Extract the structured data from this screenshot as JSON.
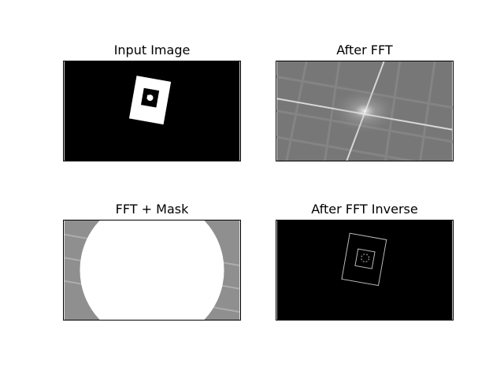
{
  "figure": {
    "panels": [
      {
        "title": "Input Image"
      },
      {
        "title": "After FFT"
      },
      {
        "title": "FFT + Mask"
      },
      {
        "title": "After FFT Inverse"
      }
    ]
  },
  "colors": {
    "background": "#ffffff",
    "image_black": "#000000",
    "image_white": "#ffffff",
    "spectrum_gray": "#7a7a7a"
  }
}
